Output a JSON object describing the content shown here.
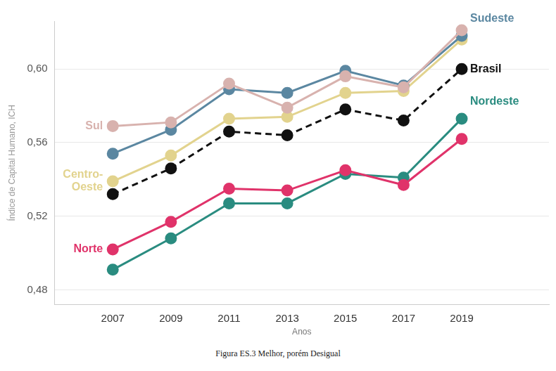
{
  "chart_data": {
    "type": "line",
    "caption": "Figura ES.3 Melhor, porém Desigual",
    "x_label": "Anos",
    "y_label": "Índice de Capital Humano, ICH",
    "x": [
      2007,
      2009,
      2011,
      2013,
      2015,
      2017,
      2019
    ],
    "xlim": [
      2005,
      2022
    ],
    "xticks": [
      2007,
      2009,
      2011,
      2013,
      2015,
      2017,
      2019
    ],
    "ylim": [
      0.472,
      0.626
    ],
    "yticks": [
      {
        "value": 0.48,
        "label": "0,48"
      },
      {
        "value": 0.52,
        "label": "0,52"
      },
      {
        "value": 0.56,
        "label": "0,56"
      },
      {
        "value": 0.6,
        "label": "0,60"
      }
    ],
    "grid": true,
    "series": [
      {
        "name": "Sul",
        "color": "#d8b2ae",
        "marker": "circle",
        "line_style": "solid",
        "values": [
          0.569,
          0.571,
          0.592,
          0.579,
          0.596,
          0.59,
          0.621
        ]
      },
      {
        "name": "Sudeste",
        "color": "#5b87a1",
        "marker": "circle",
        "line_style": "solid",
        "values": [
          0.554,
          0.567,
          0.589,
          0.587,
          0.599,
          0.591,
          0.618
        ]
      },
      {
        "name": "Centro-Oeste",
        "color": "#e2d38e",
        "marker": "circle",
        "line_style": "solid",
        "values": [
          0.539,
          0.553,
          0.573,
          0.574,
          0.587,
          0.588,
          0.616
        ]
      },
      {
        "name": "Brasil",
        "color": "#111111",
        "marker": "circle",
        "line_style": "dashed",
        "values": [
          0.532,
          0.546,
          0.566,
          0.564,
          0.578,
          0.572,
          0.6
        ]
      },
      {
        "name": "Norte",
        "color": "#e0336a",
        "marker": "circle",
        "line_style": "solid",
        "values": [
          0.502,
          0.517,
          0.535,
          0.534,
          0.545,
          0.537,
          0.562
        ]
      },
      {
        "name": "Nordeste",
        "color": "#2a8c80",
        "marker": "circle",
        "line_style": "solid",
        "values": [
          0.491,
          0.508,
          0.527,
          0.527,
          0.543,
          0.541,
          0.573
        ]
      }
    ]
  }
}
